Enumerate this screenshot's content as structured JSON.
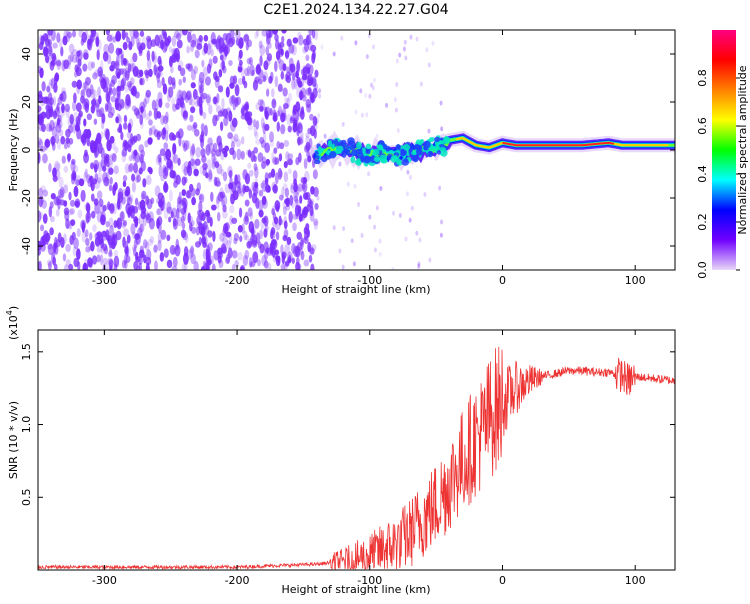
{
  "title": "C2E1.2024.134.22.27.G04",
  "colors": {
    "snr_line": "#ee3333",
    "spectro_purple": "#7a2cff",
    "colorbar_stops": [
      "#e8d8f8",
      "#7000ff",
      "#0000ff",
      "#00ffff",
      "#00ff00",
      "#ffff00",
      "#ff8000",
      "#ff0000",
      "#ff0080"
    ]
  },
  "chart_data": [
    {
      "type": "heatmap",
      "name": "spectrogram",
      "xlabel": "Height of straight line (km)",
      "ylabel": "Frequency (Hz)",
      "xlim": [
        -350,
        130
      ],
      "ylim": [
        -50,
        50
      ],
      "xticks": [
        -300,
        -200,
        -100,
        0,
        100
      ],
      "yticks": [
        -40,
        -20,
        0,
        20,
        40
      ],
      "noise_region_x": [
        -350,
        -140
      ],
      "signal_track": {
        "x": [
          -140,
          -130,
          -120,
          -110,
          -100,
          -90,
          -80,
          -70,
          -60,
          -50,
          -40,
          -30,
          -20,
          -10,
          0,
          10,
          20,
          40,
          60,
          80,
          90,
          100,
          110,
          120,
          130
        ],
        "freq": [
          -2,
          0,
          1,
          -1,
          -2,
          -1,
          -2,
          -1,
          0,
          1,
          4,
          5,
          2,
          1,
          3,
          2,
          2,
          2,
          2,
          3,
          2,
          2,
          2,
          2,
          2
        ]
      },
      "colorbar": {
        "label": "Normalized spectral amplitude",
        "range": [
          0,
          1
        ],
        "ticks": [
          0.0,
          0.2,
          0.4,
          0.6,
          0.8
        ]
      }
    },
    {
      "type": "line",
      "name": "snr",
      "xlabel": "Height of straight line (km)",
      "ylabel": "SNR (10 * v/v)",
      "y_scale_note": "(x10",
      "y_scale_exp": "4",
      "y_scale_close": ")",
      "xlim": [
        -350,
        130
      ],
      "ylim": [
        0,
        1.65
      ],
      "xticks": [
        -300,
        -200,
        -100,
        0,
        100
      ],
      "yticks": [
        0.5,
        1.0,
        1.5
      ],
      "series": [
        {
          "x": [
            -350,
            -300,
            -250,
            -200,
            -170,
            -140,
            -120,
            -100,
            -80,
            -70,
            -60,
            -50,
            -40,
            -30,
            -20,
            -15,
            -10,
            0,
            10,
            20,
            30,
            40,
            50,
            60,
            70,
            80,
            90,
            95,
            100,
            110,
            120,
            130
          ],
          "y": [
            0.02,
            0.02,
            0.02,
            0.02,
            0.03,
            0.04,
            0.06,
            0.1,
            0.18,
            0.25,
            0.35,
            0.45,
            0.6,
            0.75,
            0.9,
            0.95,
            1.05,
            1.15,
            1.25,
            1.3,
            1.33,
            1.35,
            1.37,
            1.37,
            1.36,
            1.36,
            1.34,
            1.3,
            1.33,
            1.32,
            1.31,
            1.3
          ]
        }
      ]
    }
  ]
}
